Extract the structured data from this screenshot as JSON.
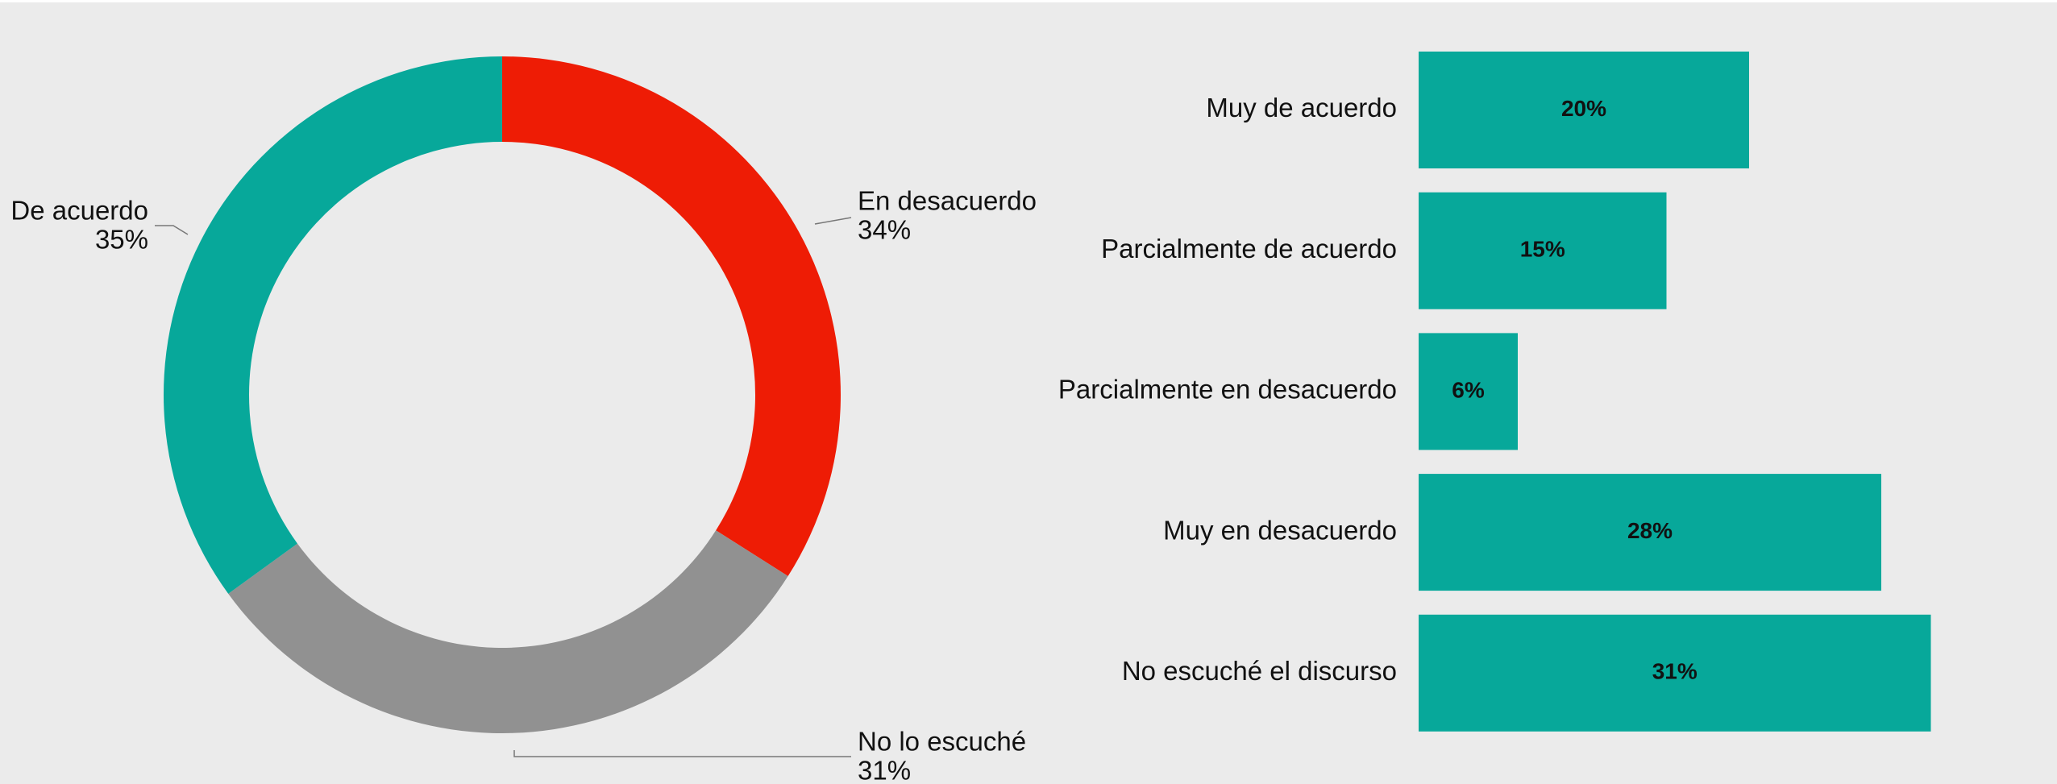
{
  "chart_data": [
    {
      "type": "donut",
      "labels": [
        "En desacuerdo",
        "No lo escuché",
        "De acuerdo"
      ],
      "values": [
        34,
        31,
        35
      ],
      "value_labels": [
        "34%",
        "31%",
        "35%"
      ],
      "colors": [
        "#ee1c05",
        "#919191",
        "#07a89a"
      ]
    },
    {
      "type": "hbar",
      "categories": [
        "Muy de acuerdo",
        "Parcialmente de acuerdo",
        "Parcialmente en desacuerdo",
        "Muy en desacuerdo",
        "No escuché el discurso"
      ],
      "values": [
        20,
        15,
        6,
        28,
        31
      ],
      "value_labels": [
        "20%",
        "15%",
        "6%",
        "28%",
        "31%"
      ],
      "color": "#07a89a"
    }
  ]
}
